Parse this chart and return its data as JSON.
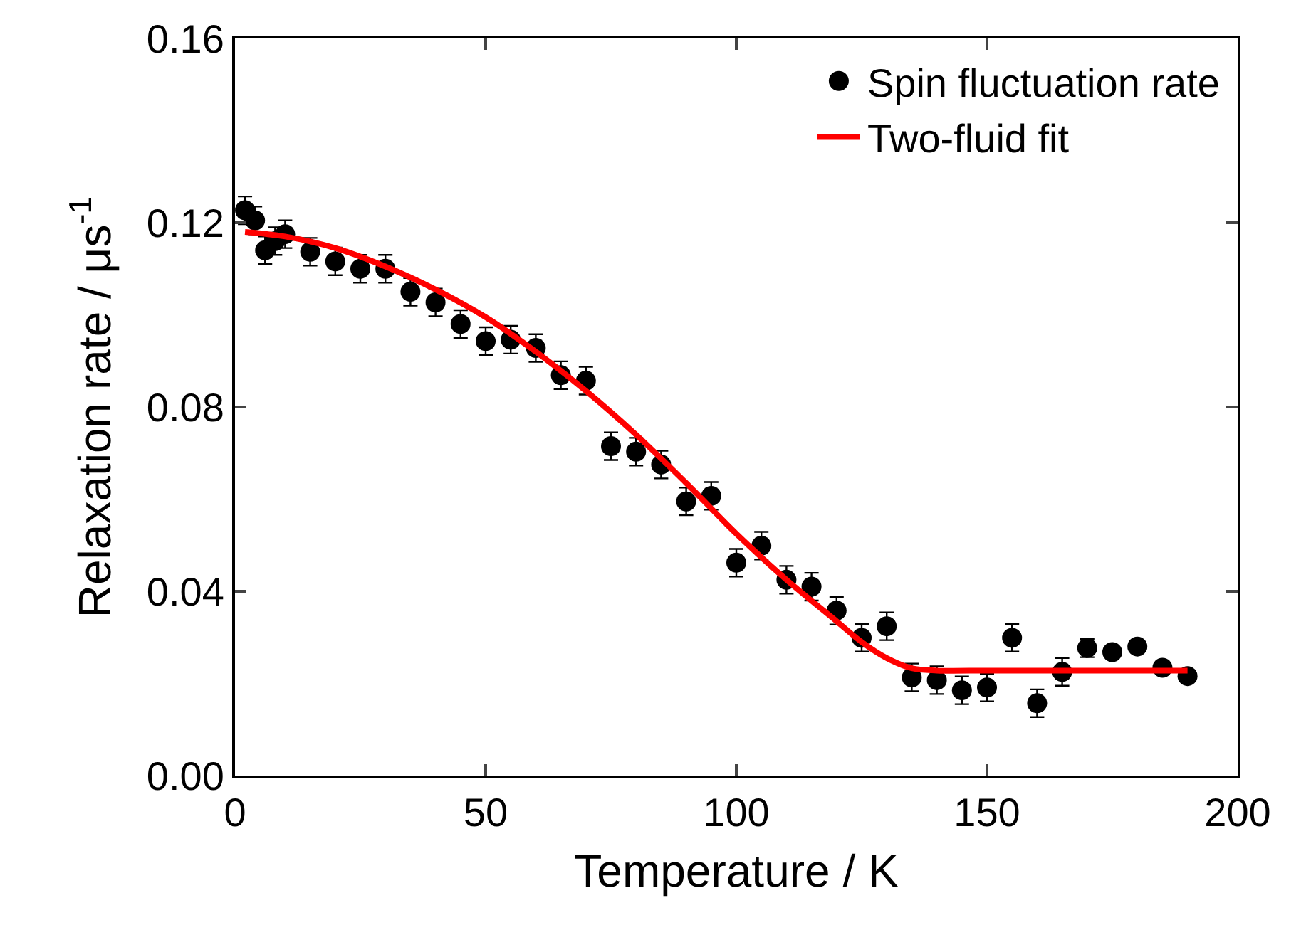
{
  "chart_data": {
    "type": "scatter",
    "xlabel": "Temperature / K",
    "ylabel": "Relaxation rate / μs$^{-1}$",
    "xlim": [
      0,
      200
    ],
    "xticks": [
      0,
      50,
      100,
      150,
      200
    ],
    "ylim": [
      0,
      0.16
    ],
    "yticks": [
      {
        "value": 0,
        "label": "0.00"
      },
      {
        "value": 0.04,
        "label": "0.04"
      },
      {
        "value": 0.08,
        "label": "0.08"
      },
      {
        "value": 0.12,
        "label": "0.12"
      },
      {
        "value": 0.16,
        "label": "0.16"
      }
    ],
    "grid": false,
    "legend": "top right",
    "marker": "circle",
    "series": [
      {
        "name": "Spin fluctuation rate",
        "color": "#000000",
        "x": [
          2,
          4,
          6,
          8,
          10,
          15,
          20,
          25,
          30,
          35,
          40,
          45,
          50,
          55,
          60,
          65,
          70,
          75,
          80,
          85,
          90,
          95,
          100,
          105,
          110,
          115,
          120,
          125,
          130,
          135,
          140,
          145,
          150,
          155,
          160,
          165,
          170,
          175,
          180,
          185,
          190
        ],
        "values": [
          0.1227,
          0.1205,
          0.114,
          0.116,
          0.1175,
          0.1137,
          0.1116,
          0.11,
          0.11,
          0.105,
          0.1027,
          0.098,
          0.0943,
          0.0946,
          0.0928,
          0.0869,
          0.0857,
          0.0715,
          0.0703,
          0.0675,
          0.0595,
          0.0607,
          0.0462,
          0.0499,
          0.0425,
          0.041,
          0.0358,
          0.0299,
          0.0324,
          0.0213,
          0.0207,
          0.0185,
          0.0191,
          0.0299,
          0.0157,
          0.0225,
          0.0277,
          0.0268,
          0.028,
          0.0234,
          0.0216
        ],
        "errors": [
          0.003,
          0.003,
          0.003,
          0.003,
          0.003,
          0.003,
          0.003,
          0.003,
          0.003,
          0.003,
          0.003,
          0.003,
          0.003,
          0.003,
          0.003,
          0.003,
          0.003,
          0.003,
          0.003,
          0.003,
          0.003,
          0.003,
          0.003,
          0.003,
          0.003,
          0.003,
          0.003,
          0.003,
          0.003,
          0.003,
          0.003,
          0.003,
          0.003,
          0.003,
          0.003,
          0.003,
          0.002,
          null,
          null,
          null,
          null
        ]
      },
      {
        "name": "Two-fluid fit",
        "type": "line",
        "color": "#ff0000",
        "marker": "none",
        "x": [
          2,
          10,
          20,
          30,
          40,
          50,
          60,
          70,
          80,
          90,
          100,
          110,
          120,
          125,
          130,
          135,
          140,
          150,
          160,
          170,
          180,
          190
        ],
        "values": [
          0.118,
          0.117,
          0.1145,
          0.1105,
          0.1055,
          0.0995,
          0.092,
          0.0835,
          0.074,
          0.0635,
          0.0525,
          0.0425,
          0.0335,
          0.029,
          0.0255,
          0.0233,
          0.0228,
          0.0228,
          0.0228,
          0.0228,
          0.0228,
          0.0228
        ]
      }
    ]
  }
}
